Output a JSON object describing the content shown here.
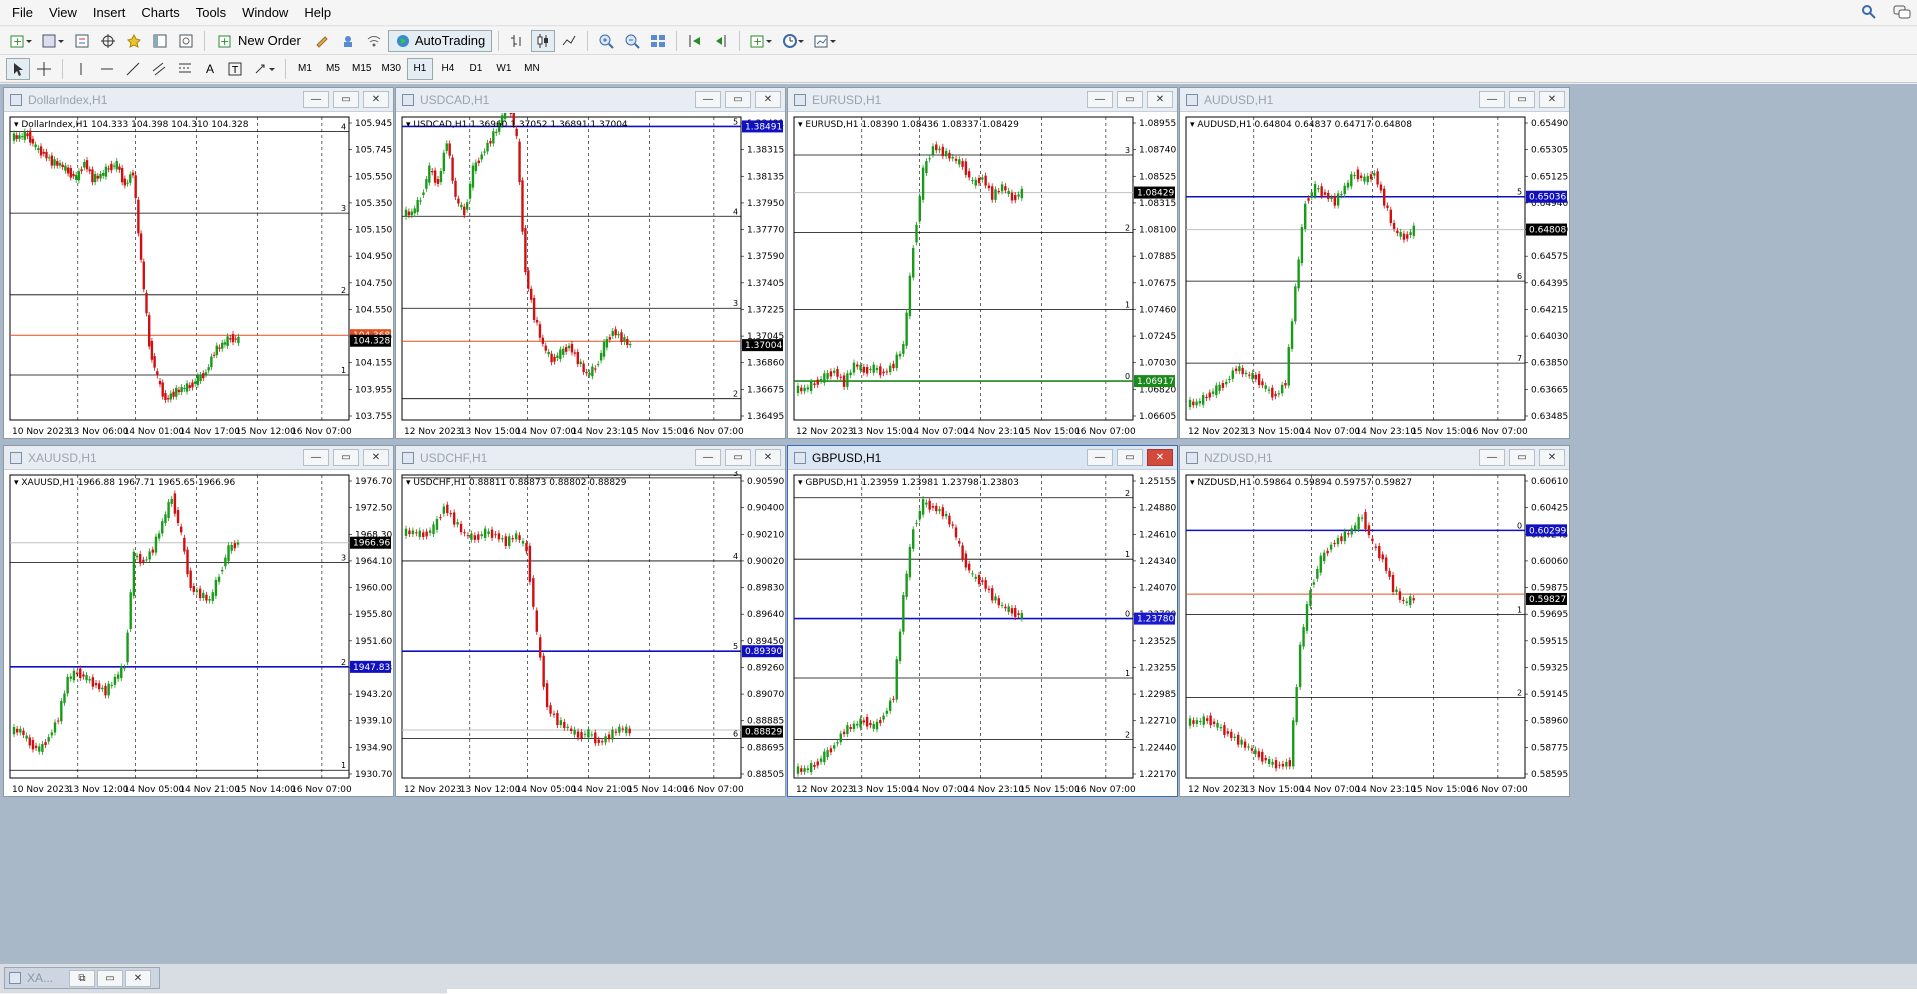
{
  "menu": [
    "File",
    "View",
    "Insert",
    "Charts",
    "Tools",
    "Window",
    "Help"
  ],
  "toolbar": {
    "new_order": "New Order",
    "autotrading": "AutoTrading"
  },
  "periods": [
    "M1",
    "M5",
    "M15",
    "M30",
    "H1",
    "H4",
    "D1",
    "W1",
    "MN"
  ],
  "active_period": "H1",
  "minimized_tab": "XA...",
  "charts": [
    {
      "title": "DollarIndex,H1",
      "info": "DollarIndex,H1  104.333 104.398 104.310 104.328",
      "yticks": [
        "105.945",
        "105.745",
        "105.550",
        "105.350",
        "105.150",
        "104.950",
        "104.750",
        "104.550",
        "104.355",
        "104.155",
        "103.955",
        "103.755"
      ],
      "xticks": [
        "10 Nov 2023",
        "13 Nov 06:00",
        "14 Nov 01:00",
        "14 Nov 17:00",
        "15 Nov 12:00",
        "16 Nov 07:00"
      ],
      "price_label": "104.328",
      "price_label2": "104.368",
      "label_color": "#000000",
      "ymin": 103.755,
      "ymax": 105.945,
      "levels": [
        {
          "v": 105.84,
          "n": "4"
        },
        {
          "v": 105.25,
          "n": "3"
        },
        {
          "v": 104.66,
          "n": "2"
        },
        {
          "v": 104.08,
          "n": "1"
        }
      ],
      "hline": {
        "v": 104.368,
        "color": "#e05020"
      },
      "path": [
        105.8,
        105.82,
        105.72,
        105.68,
        105.62,
        105.6,
        105.55,
        105.5,
        105.62,
        105.5,
        105.52,
        105.58,
        105.6,
        105.45,
        105.55,
        104.9,
        104.3,
        104.05,
        103.9,
        103.95,
        103.98,
        104.0,
        104.05,
        104.1,
        104.25,
        104.3,
        104.35,
        104.33
      ],
      "active": false
    },
    {
      "title": "USDCAD,H1",
      "info": "USDCAD,H1  1.36960 1.37052 1.36891 1.37004",
      "yticks": [
        "1.38491",
        "1.38315",
        "1.38135",
        "1.37950",
        "1.37770",
        "1.37590",
        "1.37405",
        "1.37225",
        "1.37045",
        "1.36860",
        "1.36675",
        "1.36495"
      ],
      "xticks": [
        "12 Nov 2023",
        "13 Nov 15:00",
        "14 Nov 07:00",
        "14 Nov 23:10",
        "15 Nov 15:00",
        "16 Nov 07:00"
      ],
      "price_label": "1.37004",
      "price_label2": "1.38491",
      "label_color": "#000000",
      "ymin": 1.36495,
      "ymax": 1.38555,
      "levels": [
        {
          "v": 1.38491,
          "n": "5",
          "blue": true
        },
        {
          "v": 1.3788,
          "n": "4"
        },
        {
          "v": 1.37255,
          "n": "3"
        },
        {
          "v": 1.3664,
          "n": "2"
        }
      ],
      "hline": {
        "v": 1.3703,
        "color": "#e05020"
      },
      "path": [
        1.379,
        1.38,
        1.382,
        1.381,
        1.384,
        1.38,
        1.379,
        1.382,
        1.383,
        1.384,
        1.385,
        1.387,
        1.384,
        1.375,
        1.372,
        1.37,
        1.369,
        1.3695,
        1.37,
        1.369,
        1.368,
        1.3685,
        1.37,
        1.371,
        1.3705,
        1.37
      ],
      "active": false
    },
    {
      "title": "EURUSD,H1",
      "info": "EURUSD,H1  1.08390 1.08436 1.08337 1.08429",
      "yticks": [
        "1.08955",
        "1.08740",
        "1.08525",
        "1.08315",
        "1.08100",
        "1.07885",
        "1.07675",
        "1.07460",
        "1.07245",
        "1.07030",
        "1.06820",
        "1.06605"
      ],
      "xticks": [
        "12 Nov 2023",
        "13 Nov 15:00",
        "14 Nov 07:00",
        "14 Nov 23:10",
        "15 Nov 15:00",
        "16 Nov 07:00"
      ],
      "price_label": "1.08429",
      "price_label2": "1.06917",
      "label_color": "#000000",
      "label2_color": "#1a8a1a",
      "ymin": 1.06605,
      "ymax": 1.09035,
      "levels": [
        {
          "v": 1.0873,
          "n": "3"
        },
        {
          "v": 1.0811,
          "n": "2"
        },
        {
          "v": 1.0749,
          "n": "1"
        },
        {
          "v": 1.06917,
          "n": "0",
          "green": true
        }
      ],
      "hline": {
        "v": 1.08429,
        "color": "#c0c0c0"
      },
      "path": [
        1.0685,
        1.069,
        1.0695,
        1.07,
        1.069,
        1.0705,
        1.07,
        1.0702,
        1.0698,
        1.0705,
        1.072,
        1.08,
        1.086,
        1.088,
        1.0875,
        1.087,
        1.0865,
        1.085,
        1.0855,
        1.084,
        1.0848,
        1.0838,
        1.0843
      ],
      "active": false
    },
    {
      "title": "AUDUSD,H1",
      "info": "AUDUSD,H1  0.64804 0.64837 0.64717 0.64808",
      "yticks": [
        "0.65490",
        "0.65305",
        "0.65125",
        "0.64940",
        "0.64760",
        "0.64575",
        "0.64395",
        "0.64215",
        "0.64030",
        "0.63850",
        "0.63665",
        "0.63485"
      ],
      "xticks": [
        "12 Nov 2023",
        "13 Nov 15:00",
        "14 Nov 07:00",
        "14 Nov 23:10",
        "15 Nov 15:00",
        "16 Nov 07:00"
      ],
      "price_label": "0.64808",
      "price_label2": "0.65036",
      "label_color": "#000000",
      "ymin": 0.63485,
      "ymax": 0.6559,
      "levels": [
        {
          "v": 0.65036,
          "n": "5",
          "blue": true
        },
        {
          "v": 0.6445,
          "n": "6"
        },
        {
          "v": 0.6388,
          "n": "7"
        }
      ],
      "hline": {
        "v": 0.64808,
        "color": "#c0c0c0"
      },
      "path": [
        0.636,
        0.6365,
        0.637,
        0.6375,
        0.6385,
        0.638,
        0.6378,
        0.637,
        0.6365,
        0.6375,
        0.644,
        0.65,
        0.651,
        0.6505,
        0.65,
        0.651,
        0.652,
        0.6515,
        0.652,
        0.65,
        0.648,
        0.6475,
        0.6481
      ],
      "active": false
    },
    {
      "title": "XAUUSD,H1",
      "info": "XAUUSD,H1  1966.88 1967.71 1965.65 1966.96",
      "yticks": [
        "1976.70",
        "1972.50",
        "1968.30",
        "1964.10",
        "1960.00",
        "1955.80",
        "1951.60",
        "1947.83",
        "1943.20",
        "1939.10",
        "1934.90",
        "1930.70"
      ],
      "xticks": [
        "10 Nov 2023",
        "13 Nov 12:00",
        "14 Nov 05:00",
        "14 Nov 21:00",
        "15 Nov 14:00",
        "16 Nov 07:00"
      ],
      "price_label": "1966.96",
      "price_label2": "1947.83",
      "label_color": "#000000",
      "ymin": 1930.7,
      "ymax": 1977.4,
      "levels": [
        {
          "v": 1963.9,
          "n": "3"
        },
        {
          "v": 1947.83,
          "n": "2",
          "blue": true
        },
        {
          "v": 1931.9,
          "n": "1"
        }
      ],
      "hline": {
        "v": 1966.96,
        "color": "#c0c0c0"
      },
      "path": [
        1938,
        1936,
        1935,
        1937,
        1940,
        1946,
        1947,
        1946,
        1945,
        1944,
        1946,
        1948,
        1965,
        1964,
        1966,
        1970,
        1974,
        1968,
        1960,
        1959,
        1958,
        1962,
        1966,
        1967
      ],
      "active": false
    },
    {
      "title": "USDCHF,H1",
      "info": "USDCHF,H1  0.88811 0.88873 0.88802 0.88829",
      "yticks": [
        "0.90590",
        "0.90400",
        "0.90210",
        "0.90020",
        "0.89830",
        "0.89640",
        "0.89450",
        "0.89260",
        "0.89070",
        "0.88885",
        "0.88695",
        "0.88505"
      ],
      "xticks": [
        "12 Nov 2023",
        "13 Nov 12:00",
        "14 Nov 05:00",
        "14 Nov 21:00",
        "15 Nov 14:00",
        "16 Nov 07:00"
      ],
      "price_label": "0.88829",
      "price_label2": "0.89390",
      "label_color": "#000000",
      "ymin": 0.88505,
      "ymax": 0.9062,
      "levels": [
        {
          "v": 0.906,
          "n": "3"
        },
        {
          "v": 0.9002,
          "n": "4"
        },
        {
          "v": 0.8939,
          "n": "5",
          "blue": true
        },
        {
          "v": 0.8878,
          "n": "6"
        }
      ],
      "hline": {
        "v": 0.8884,
        "color": "#c0c0c0"
      },
      "path": [
        0.9022,
        0.902,
        0.9025,
        0.904,
        0.903,
        0.902,
        0.9018,
        0.9022,
        0.902,
        0.9015,
        0.902,
        0.901,
        0.895,
        0.89,
        0.889,
        0.8885,
        0.888,
        0.8882,
        0.8875,
        0.888,
        0.8885,
        0.8883
      ],
      "active": false
    },
    {
      "title": "GBPUSD,H1",
      "info": "GBPUSD,H1  1.23959 1.23981 1.23798 1.23803",
      "yticks": [
        "1.25155",
        "1.24880",
        "1.24610",
        "1.24340",
        "1.24070",
        "1.23780",
        "1.23525",
        "1.23255",
        "1.22985",
        "1.22710",
        "1.22440",
        "1.22170"
      ],
      "xticks": [
        "12 Nov 2023",
        "13 Nov 15:00",
        "14 Nov 07:00",
        "14 Nov 23:10",
        "15 Nov 15:00",
        "16 Nov 07:00"
      ],
      "price_label": "1.23780",
      "price_label2": "1.23780",
      "label_color": "#1a1acc",
      "ymin": 1.2217,
      "ymax": 1.2523,
      "levels": [
        {
          "v": 1.25,
          "n": "2"
        },
        {
          "v": 1.2438,
          "n": "1"
        },
        {
          "v": 1.2378,
          "n": "0",
          "blue": true
        },
        {
          "v": 1.2318,
          "n": "1"
        },
        {
          "v": 1.2256,
          "n": "2"
        }
      ],
      "hline": null,
      "path": [
        1.2225,
        1.223,
        1.224,
        1.225,
        1.2265,
        1.227,
        1.2275,
        1.2268,
        1.228,
        1.23,
        1.24,
        1.247,
        1.2495,
        1.249,
        1.2485,
        1.247,
        1.244,
        1.242,
        1.2415,
        1.24,
        1.239,
        1.2385,
        1.238
      ],
      "active": true
    },
    {
      "title": "NZDUSD,H1",
      "info": "NZDUSD,H1  0.59864 0.59894 0.59757 0.59827",
      "yticks": [
        "0.60610",
        "0.60425",
        "0.60245",
        "0.60060",
        "0.59875",
        "0.59695",
        "0.59515",
        "0.59325",
        "0.59145",
        "0.58960",
        "0.58775",
        "0.58595"
      ],
      "xticks": [
        "12 Nov 2023",
        "13 Nov 15:00",
        "14 Nov 07:00",
        "14 Nov 23:10",
        "15 Nov 15:00",
        "16 Nov 07:00"
      ],
      "price_label": "0.59827",
      "price_label2": "0.60299",
      "label_color": "#000000",
      "ymin": 0.58595,
      "ymax": 0.6068,
      "levels": [
        {
          "v": 0.60299,
          "n": "0",
          "blue": true
        },
        {
          "v": 0.5972,
          "n": "1"
        },
        {
          "v": 0.5915,
          "n": "2"
        }
      ],
      "hline": {
        "v": 0.5986,
        "color": "#e05020"
      },
      "path": [
        0.5898,
        0.59,
        0.5895,
        0.589,
        0.5885,
        0.588,
        0.5875,
        0.587,
        0.5868,
        0.587,
        0.595,
        0.599,
        0.601,
        0.602,
        0.6025,
        0.603,
        0.604,
        0.602,
        0.601,
        0.599,
        0.598,
        0.5983
      ],
      "active": false
    }
  ]
}
